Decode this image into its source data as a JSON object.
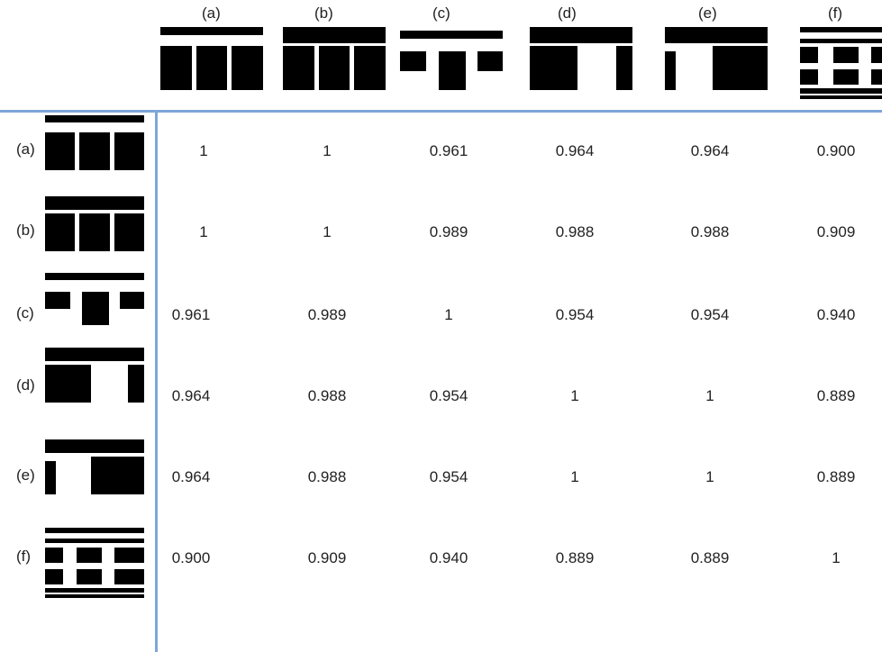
{
  "chart_data": {
    "type": "table",
    "columns": [
      "(a)",
      "(b)",
      "(c)",
      "(d)",
      "(e)",
      "(f)"
    ],
    "rows": [
      "(a)",
      "(b)",
      "(c)",
      "(d)",
      "(e)",
      "(f)"
    ],
    "values": [
      [
        "1",
        "1",
        "0.961",
        "0.964",
        "0.964",
        "0.900"
      ],
      [
        "1",
        "1",
        "0.989",
        "0.988",
        "0.988",
        "0.909"
      ],
      [
        "0.961",
        "0.989",
        "1",
        "0.954",
        "0.954",
        "0.940"
      ],
      [
        "0.964",
        "0.988",
        "0.954",
        "1",
        "1",
        "0.889"
      ],
      [
        "0.964",
        "0.988",
        "0.954",
        "1",
        "1",
        "0.889"
      ],
      [
        "0.900",
        "0.909",
        "0.940",
        "0.889",
        "0.889",
        "1"
      ]
    ],
    "layout_icons": [
      "layout-a-icon",
      "layout-b-icon",
      "layout-c-icon",
      "layout-d-icon",
      "layout-e-icon",
      "layout-f-icon"
    ],
    "colors": {
      "divider": "#7ea6d8",
      "shapes": "#000000"
    }
  }
}
